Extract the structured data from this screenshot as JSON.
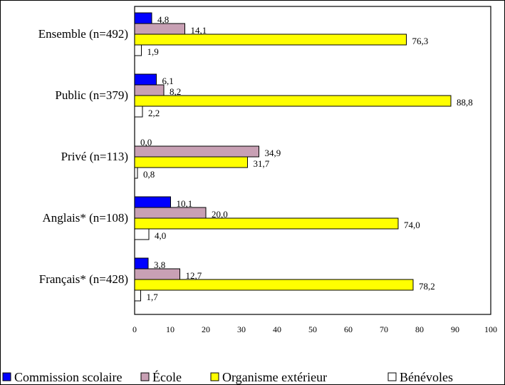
{
  "chart_data": {
    "type": "bar",
    "orientation": "horizontal",
    "categories": [
      "Ensemble (n=492)",
      "Public (n=379)",
      "Privé (n=113)",
      "Anglais* (n=108)",
      "Français* (n=428)"
    ],
    "series": [
      {
        "name": "Commission scolaire",
        "color": "#0000ff",
        "values": [
          4.8,
          6.1,
          0.0,
          10.1,
          3.8
        ],
        "labels": [
          "4,8",
          "6,1",
          "0,0",
          "10,1",
          "3,8"
        ]
      },
      {
        "name": "École",
        "color": "#c8a0b4",
        "values": [
          14.1,
          8.2,
          34.9,
          20.0,
          12.7
        ],
        "labels": [
          "14,1",
          "8,2",
          "34,9",
          "20,0",
          "12,7"
        ]
      },
      {
        "name": "Organisme extérieur",
        "color": "#ffff00",
        "values": [
          76.3,
          88.8,
          31.7,
          74.0,
          78.2
        ],
        "labels": [
          "76,3",
          "88,8",
          "31,7",
          "74,0",
          "78,2"
        ]
      },
      {
        "name": "Bénévoles",
        "color": "#ffffff",
        "values": [
          1.9,
          2.2,
          0.8,
          4.0,
          1.7
        ],
        "labels": [
          "1,9",
          "2,2",
          "0,8",
          "4,0",
          "1,7"
        ]
      }
    ],
    "xlim": [
      0,
      100
    ],
    "xticks": [
      "0",
      "10",
      "20",
      "30",
      "40",
      "50",
      "60",
      "70",
      "80",
      "90",
      "100"
    ],
    "grid": false,
    "legend": "bottom"
  }
}
